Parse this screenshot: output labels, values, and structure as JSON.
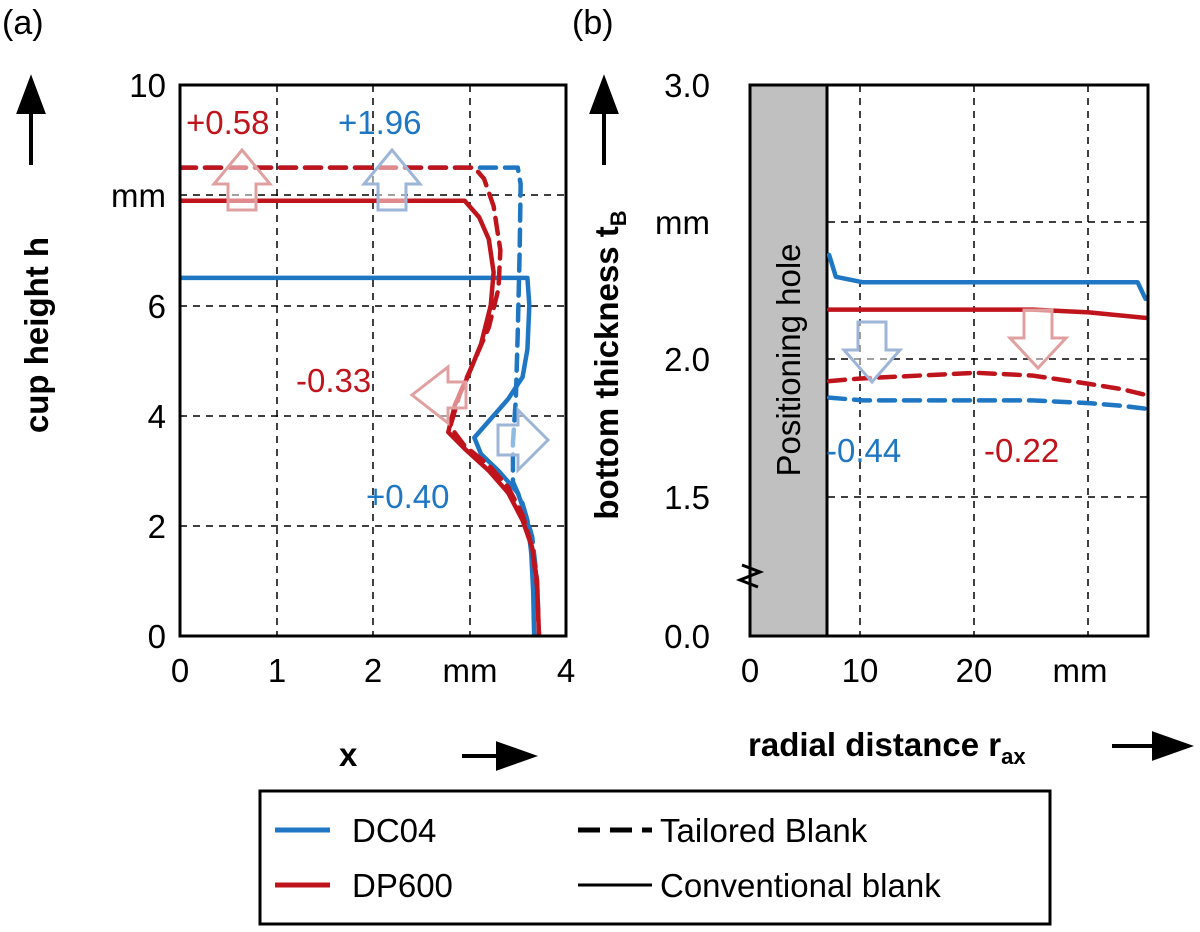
{
  "colors": {
    "blue": "#1f77c4",
    "red": "#c0141c",
    "arrow_blue": "#9db6d8",
    "arrow_red": "#e0a0a0",
    "hole_fill": "#c0c0c0"
  },
  "chart_data": [
    {
      "type": "line",
      "panel_label": "(a)",
      "xlabel": "x",
      "ylabel": "cup height h",
      "xlim": [
        0,
        4
      ],
      "ylim": [
        0,
        10
      ],
      "x_ticks": [
        "0",
        "1",
        "2",
        "mm",
        "4"
      ],
      "y_ticks": [
        "0",
        "2",
        "4",
        "6",
        "mm",
        "10"
      ],
      "grid": true,
      "series": [
        {
          "name": "DC04 Conventional blank",
          "material": "DC04",
          "style": "solid",
          "color": "blue",
          "points": [
            [
              0,
              6.5
            ],
            [
              3.6,
              6.5
            ],
            [
              3.62,
              6.0
            ],
            [
              3.6,
              5.2
            ],
            [
              3.55,
              4.7
            ],
            [
              3.4,
              4.3
            ],
            [
              3.2,
              3.9
            ],
            [
              3.05,
              3.6
            ],
            [
              3.12,
              3.3
            ],
            [
              3.3,
              3.0
            ],
            [
              3.5,
              2.6
            ],
            [
              3.6,
              2.1
            ],
            [
              3.64,
              1.5
            ],
            [
              3.66,
              0.8
            ],
            [
              3.67,
              0
            ]
          ]
        },
        {
          "name": "DC04 Tailored Blank",
          "material": "DC04",
          "style": "dashed",
          "color": "blue",
          "points": [
            [
              0,
              8.5
            ],
            [
              3.5,
              8.5
            ],
            [
              3.53,
              8.2
            ],
            [
              3.52,
              7.0
            ],
            [
              3.5,
              5.5
            ],
            [
              3.48,
              4.3
            ],
            [
              3.45,
              3.5
            ],
            [
              3.45,
              2.8
            ],
            [
              3.55,
              2.4
            ],
            [
              3.65,
              1.8
            ],
            [
              3.7,
              1.0
            ],
            [
              3.72,
              0
            ]
          ]
        },
        {
          "name": "DP600 Conventional blank",
          "material": "DP600",
          "style": "solid",
          "color": "red",
          "points": [
            [
              0,
              7.9
            ],
            [
              2.95,
              7.9
            ],
            [
              3.1,
              7.6
            ],
            [
              3.2,
              7.2
            ],
            [
              3.25,
              6.6
            ],
            [
              3.22,
              6.0
            ],
            [
              3.12,
              5.3
            ],
            [
              2.98,
              4.7
            ],
            [
              2.85,
              4.2
            ],
            [
              2.78,
              3.7
            ],
            [
              2.95,
              3.4
            ],
            [
              3.2,
              3.0
            ],
            [
              3.4,
              2.6
            ],
            [
              3.55,
              2.1
            ],
            [
              3.65,
              1.6
            ],
            [
              3.7,
              1.0
            ],
            [
              3.72,
              0
            ]
          ]
        },
        {
          "name": "DP600 Tailored Blank",
          "material": "DP600",
          "style": "dashed",
          "color": "red",
          "points": [
            [
              0,
              8.5
            ],
            [
              3.05,
              8.5
            ],
            [
              3.15,
              8.3
            ],
            [
              3.25,
              7.8
            ],
            [
              3.32,
              7.0
            ],
            [
              3.3,
              6.3
            ],
            [
              3.2,
              5.6
            ],
            [
              3.05,
              5.0
            ],
            [
              2.9,
              4.4
            ],
            [
              2.8,
              3.8
            ],
            [
              2.95,
              3.45
            ],
            [
              3.2,
              3.1
            ],
            [
              3.4,
              2.7
            ],
            [
              3.55,
              2.2
            ],
            [
              3.65,
              1.6
            ],
            [
              3.7,
              0.9
            ],
            [
              3.72,
              0
            ]
          ]
        }
      ],
      "annotations": [
        {
          "text": "+0.58",
          "color": "red"
        },
        {
          "text": "+1.96",
          "color": "blue"
        },
        {
          "text": "-0.33",
          "color": "red"
        },
        {
          "text": "+0.40",
          "color": "blue"
        }
      ]
    },
    {
      "type": "line",
      "panel_label": "(b)",
      "xlabel": "radial distance r",
      "xlabel_sub": "ax",
      "ylabel": "bottom thickness t",
      "ylabel_sub": "B",
      "xlim": [
        0,
        35
      ],
      "ylim_display": [
        "0.0",
        "1.5",
        "2.0",
        "mm",
        "3.0"
      ],
      "x_ticks": [
        "0",
        "10",
        "20",
        "mm"
      ],
      "y_ticks": [
        "0.0",
        "1.5",
        "2.0",
        "mm",
        "3.0"
      ],
      "axis_break": true,
      "grid": true,
      "shaded_region": {
        "label": "Positioning hole",
        "x_range": [
          0,
          7
        ]
      },
      "series": [
        {
          "name": "DC04 Conventional blank",
          "material": "DC04",
          "style": "solid",
          "color": "blue",
          "points": [
            [
              7,
              2.38
            ],
            [
              7.6,
              2.3
            ],
            [
              10,
              2.28
            ],
            [
              15,
              2.28
            ],
            [
              20,
              2.28
            ],
            [
              25,
              2.28
            ],
            [
              30,
              2.28
            ],
            [
              34.3,
              2.28
            ],
            [
              35,
              2.22
            ]
          ]
        },
        {
          "name": "DC04 Tailored Blank",
          "material": "DC04",
          "style": "dashed",
          "color": "blue",
          "points": [
            [
              7,
              1.86
            ],
            [
              10,
              1.85
            ],
            [
              15,
              1.85
            ],
            [
              20,
              1.85
            ],
            [
              25,
              1.85
            ],
            [
              30,
              1.84
            ],
            [
              33,
              1.83
            ],
            [
              35,
              1.82
            ]
          ]
        },
        {
          "name": "DP600 Conventional blank",
          "material": "DP600",
          "style": "solid",
          "color": "red",
          "points": [
            [
              7,
              2.18
            ],
            [
              10,
              2.18
            ],
            [
              15,
              2.18
            ],
            [
              20,
              2.18
            ],
            [
              25,
              2.18
            ],
            [
              30,
              2.17
            ],
            [
              35,
              2.15
            ]
          ]
        },
        {
          "name": "DP600 Tailored Blank",
          "material": "DP600",
          "style": "dashed",
          "color": "red",
          "points": [
            [
              7,
              1.92
            ],
            [
              10,
              1.93
            ],
            [
              15,
              1.94
            ],
            [
              20,
              1.95
            ],
            [
              25,
              1.94
            ],
            [
              30,
              1.91
            ],
            [
              33,
              1.89
            ],
            [
              35,
              1.87
            ]
          ]
        }
      ],
      "annotations": [
        {
          "text": "-0.44",
          "color": "blue"
        },
        {
          "text": "-0.22",
          "color": "red"
        }
      ]
    }
  ],
  "legend": {
    "placement": "bottom",
    "entries": [
      {
        "label": "DC04",
        "color": "blue",
        "style": "solid"
      },
      {
        "label": "Tailored Blank",
        "color": "black",
        "style": "dashed"
      },
      {
        "label": "DP600",
        "color": "red",
        "style": "solid"
      },
      {
        "label": "Conventional blank",
        "color": "black",
        "style": "solid"
      }
    ]
  }
}
